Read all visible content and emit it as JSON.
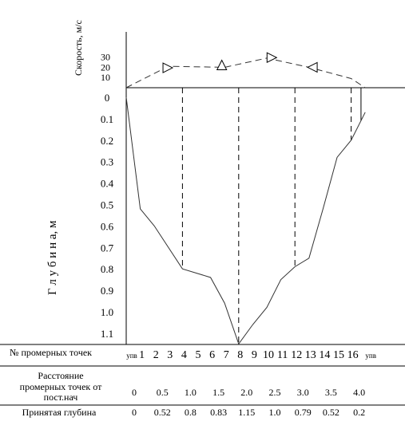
{
  "diagram": {
    "velocity_axis_label": "Скорость, м/с",
    "depth_axis_label": "Г л у б и н а,   м",
    "velocity_ticks": [
      "30",
      "20",
      "10"
    ],
    "depth_ticks": [
      "0",
      "0.1",
      "0.2",
      "0.3",
      "0.4",
      "0.5",
      "0.6",
      "0.7",
      "0.8",
      "0.9",
      "1.0",
      "1.1"
    ]
  },
  "table": {
    "row1_label": "№ промерных точек",
    "row1_values": [
      "упв",
      "1",
      "2",
      "3",
      "4",
      "5",
      "6",
      "7",
      "8",
      "9",
      "10",
      "11",
      "12",
      "13",
      "14",
      "15",
      "16",
      "упв"
    ],
    "row2_label_lines": [
      "Расстояние",
      "промерных точек от",
      "пост.нач"
    ],
    "row2_values": [
      "0",
      "0.5",
      "1.0",
      "1.5",
      "2.0",
      "2.5",
      "3.0",
      "3.5",
      "4.0"
    ],
    "row3_label": "Принятая глубина",
    "row3_values": [
      "0",
      "0.52",
      "0.8",
      "0.83",
      "1.15",
      "1.0",
      "0.79",
      "0.52",
      "0.2"
    ]
  },
  "chart_data": {
    "type": "line",
    "x_unit": "measurement point",
    "depth_profile": {
      "x": [
        0,
        1,
        2,
        4,
        6,
        7,
        8,
        9,
        10,
        11,
        12,
        13,
        14,
        15,
        16,
        17
      ],
      "depth": [
        0,
        0.52,
        0.6,
        0.8,
        0.84,
        0.96,
        1.15,
        1.06,
        0.98,
        0.85,
        0.79,
        0.75,
        0.52,
        0.28,
        0.2,
        0.07
      ]
    },
    "velocity_profile": {
      "x": [
        0,
        3,
        7,
        10,
        13,
        16,
        17
      ],
      "velocity": [
        0,
        21,
        20,
        29,
        20,
        9,
        0
      ]
    },
    "verticals_x": [
      4,
      8,
      12,
      16
    ],
    "velocity_range": [
      0,
      30
    ],
    "depth_range": [
      0,
      1.15
    ]
  }
}
